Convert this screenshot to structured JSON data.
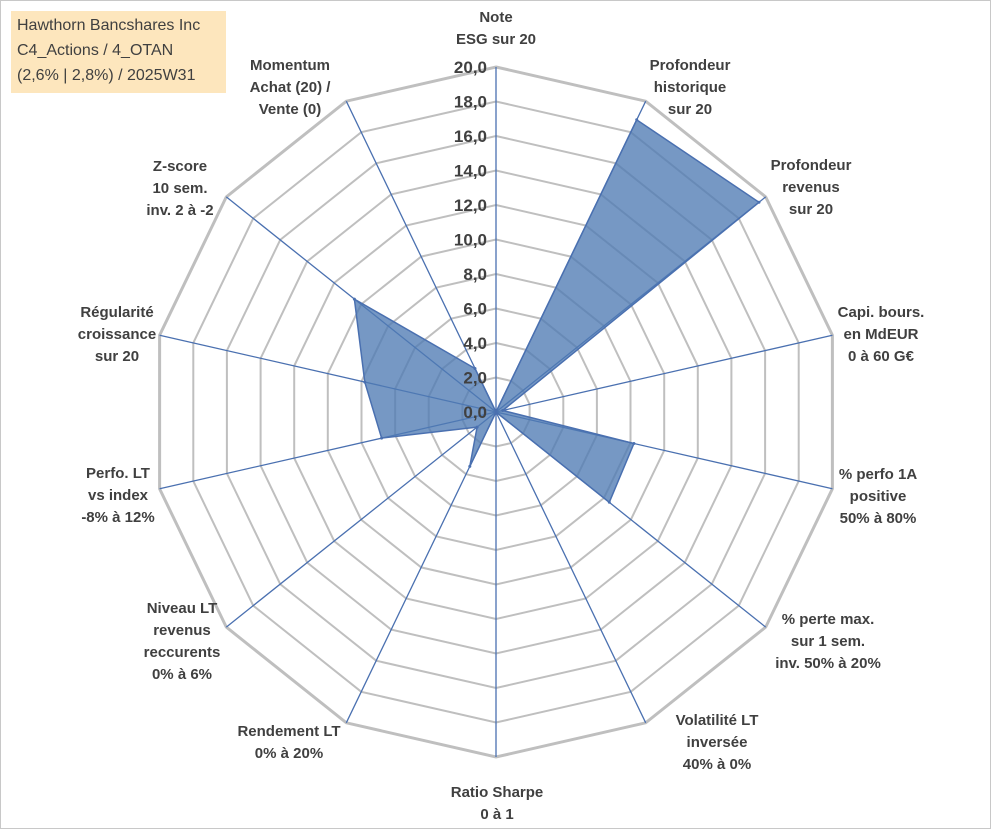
{
  "info_box": {
    "line1": "Hawthorn Bancshares Inc",
    "line2": "C4_Actions / 4_OTAN",
    "line3": "(2,6% | 2,8%) / 2025W31"
  },
  "colors": {
    "grid": "#bfbfbf",
    "spoke": "#4a70b0",
    "fill": "#4f7bb4",
    "label": "#404040",
    "info_box_bg": "#fde6bd"
  },
  "chart_data": {
    "type": "radar",
    "scale": {
      "min": 0,
      "max": 20,
      "step": 2
    },
    "tick_labels": [
      "0,0",
      "2,0",
      "4,0",
      "6,0",
      "8,0",
      "10,0",
      "12,0",
      "14,0",
      "16,0",
      "18,0",
      "20,0"
    ],
    "axes": [
      {
        "label": [
          "Note",
          "ESG sur 20"
        ],
        "value": 0
      },
      {
        "label": [
          "Profondeur",
          "historique",
          "sur 20"
        ],
        "value": 18.8
      },
      {
        "label": [
          "Profondeur",
          "revenus",
          "sur 20"
        ],
        "value": 19.5
      },
      {
        "label": [
          "Capi. bours.",
          "en MdEUR",
          "0 à 60 G€"
        ],
        "value": 0.4
      },
      {
        "label": [
          "% perfo 1A",
          "positive",
          "50% à 80%"
        ],
        "value": 8.2
      },
      {
        "label": [
          "% perte max.",
          "sur 1 sem.",
          "inv. 50% à 20%"
        ],
        "value": 8.4
      },
      {
        "label": [
          "Volatilité LT",
          "inversée",
          "40% à 0%"
        ],
        "value": 0
      },
      {
        "label": [
          "Ratio Sharpe",
          "0 à 1"
        ],
        "value": 0
      },
      {
        "label": [
          "Rendement LT",
          "0% à 20%"
        ],
        "value": 3.5
      },
      {
        "label": [
          "Niveau LT",
          "revenus",
          "reccurents",
          "0% à 6%"
        ],
        "value": 1.4
      },
      {
        "label": [
          "Perfo. LT",
          "vs index",
          "-8% à 12%"
        ],
        "value": 6.8
      },
      {
        "label": [
          "Régularité",
          "croissance",
          "sur 20"
        ],
        "value": 7.8
      },
      {
        "label": [
          "Z-score",
          "10 sem.",
          "inv. 2 à -2"
        ],
        "value": 10.5
      },
      {
        "label": [
          "Momentum",
          "Achat (20) /",
          "Vente (0)"
        ],
        "value": 2.8
      }
    ]
  }
}
